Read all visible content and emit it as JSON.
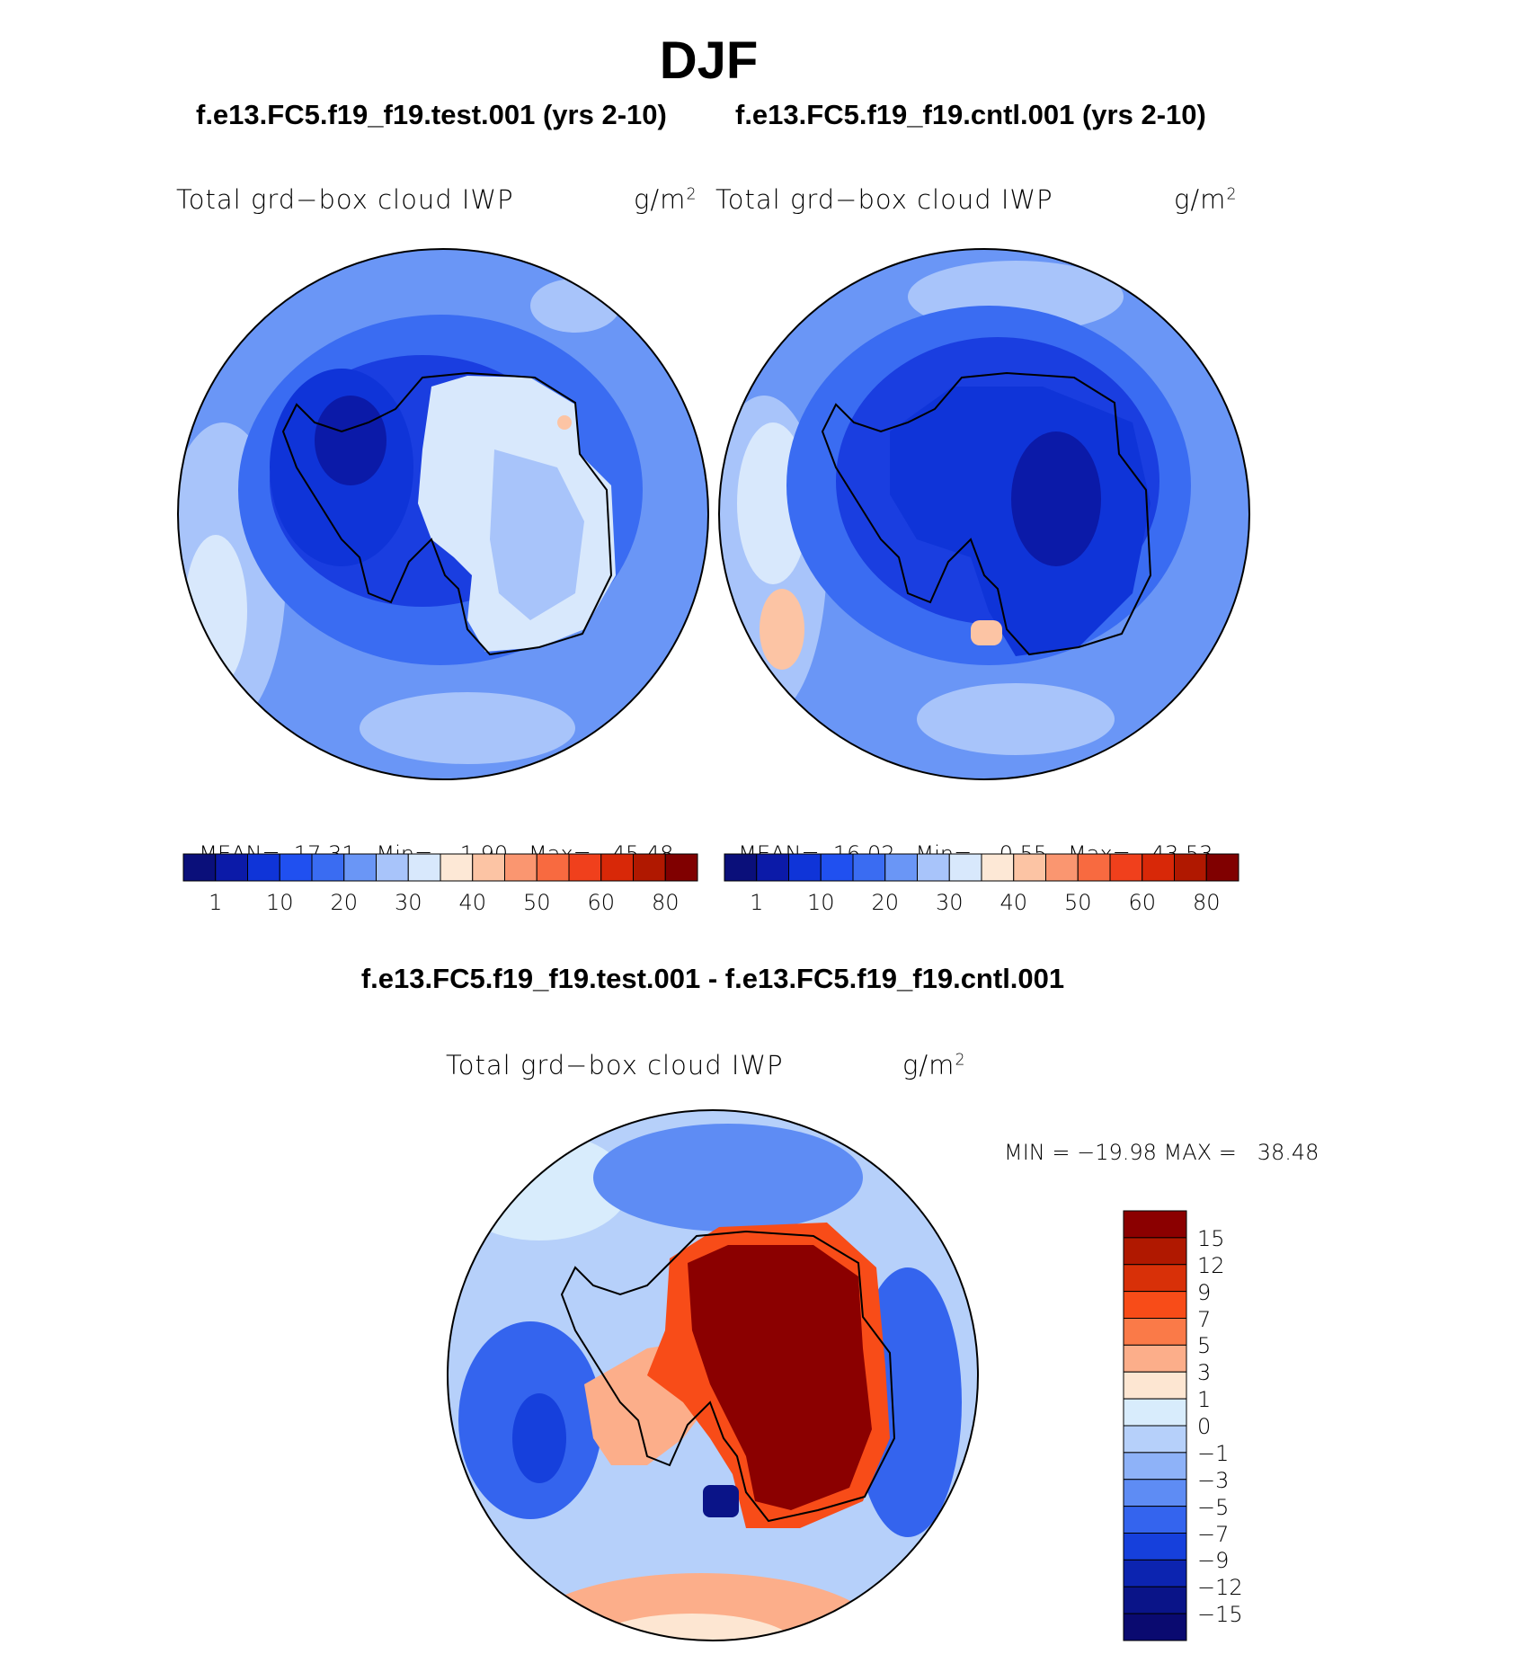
{
  "figure": {
    "season": "DJF",
    "test_case": "f.e13.FC5.f19_f19.test.001 (yrs 2-10)",
    "control_case": "f.e13.FC5.f19_f19.cntl.001 (yrs 2-10)",
    "difference_title": "f.e13.FC5.f19_f19.test.001 - f.e13.FC5.f19_f19.cntl.001"
  },
  "panels": {
    "test": {
      "variable": "Total grd−box cloud IWP",
      "units_base": "g/m",
      "units_exp": "2",
      "mean_label": "MEAN=",
      "mean_value": "17.31",
      "min_label": "Min=",
      "min_value": "1.90",
      "max_label": "Max=",
      "max_value": "45.48"
    },
    "control": {
      "variable": "Total grd−box cloud IWP",
      "units_base": "g/m",
      "units_exp": "2",
      "mean_label": "MEAN=",
      "mean_value": "16.02",
      "min_label": "Min=",
      "min_value": "0.55",
      "max_label": "Max=",
      "max_value": "43.53"
    },
    "difference": {
      "variable": "Total grd−box cloud IWP",
      "units_base": "g/m",
      "units_exp": "2",
      "minmax_text": "MIN = −19.98 MAX =   38.48"
    }
  },
  "colorbar_main": {
    "ticks": [
      "1",
      "10",
      "20",
      "30",
      "40",
      "50",
      "60",
      "80"
    ],
    "colors": [
      "#0a0f7a",
      "#0b1aa8",
      "#0f34d8",
      "#2050f0",
      "#3a6cf2",
      "#6a96f6",
      "#a8c4fa",
      "#d8e8fc",
      "#fde8d6",
      "#fcc4a4",
      "#fa9670",
      "#f86a40",
      "#f0401c",
      "#d82808",
      "#b01800",
      "#800000"
    ]
  },
  "colorbar_diff": {
    "ticks": [
      "15",
      "12",
      "9",
      "7",
      "5",
      "3",
      "1",
      "0",
      "−1",
      "−3",
      "−5",
      "−7",
      "−9",
      "−12",
      "−15"
    ],
    "colors": [
      "#8b0000",
      "#b01800",
      "#d83008",
      "#f84c18",
      "#fa7a48",
      "#fcae8a",
      "#fde6d2",
      "#d8ecfc",
      "#b6d0fa",
      "#8eb2f8",
      "#5e8cf4",
      "#3464ee",
      "#1640dc",
      "#0c24b0",
      "#0a1488",
      "#0a0a70"
    ]
  },
  "map_colors": {
    "ocean_light": "#a8c4fa",
    "ocean_mid": "#6a96f6",
    "ocean_deep": "#3a6cf2",
    "ring_dark": "#1a3ee0",
    "core_dark": "#0b1aa8",
    "plateau_light": "#d8e8fc",
    "warm_patch": "#fcc4a4",
    "diff_red": "#8b0000",
    "diff_orange": "#f84c18",
    "diff_salmon": "#fcae8a",
    "diff_blue": "#3464ee",
    "diff_light": "#b6d0fa"
  }
}
